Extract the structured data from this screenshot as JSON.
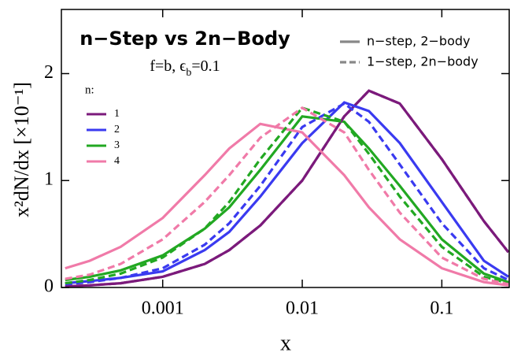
{
  "chart_data": {
    "type": "line",
    "title": "n−Step vs 2n−Body",
    "subtitle_parts": [
      "f=b, ϵ",
      "b",
      "=0.1"
    ],
    "x_label": "x",
    "y_label": "x²dN/dx [×10⁻¹]",
    "x_scale": "log",
    "xlim": [
      0.000188,
      0.304
    ],
    "xticks": [
      0.001,
      0.01,
      0.1
    ],
    "ylim": [
      0,
      2.6
    ],
    "yticks": [
      0,
      1,
      2
    ],
    "x": [
      0.0002,
      0.0003,
      0.0005,
      0.001,
      0.002,
      0.003,
      0.005,
      0.01,
      0.02,
      0.03,
      0.05,
      0.1,
      0.2,
      0.3
    ],
    "legend_title": "n:",
    "style_legend": [
      {
        "label": "n−step, 2−body",
        "dash": "solid"
      },
      {
        "label": "1−step, 2n−body",
        "dash": "dashed"
      }
    ],
    "series": [
      {
        "name": "1",
        "color": "#7b1a7b",
        "dash": "solid",
        "values": [
          0.01,
          0.02,
          0.04,
          0.1,
          0.22,
          0.35,
          0.58,
          1.0,
          1.6,
          1.84,
          1.72,
          1.2,
          0.62,
          0.33
        ]
      },
      {
        "name": "2",
        "color": "#3a3af0",
        "dash": "solid",
        "values": [
          0.04,
          0.06,
          0.09,
          0.15,
          0.35,
          0.52,
          0.85,
          1.35,
          1.73,
          1.65,
          1.35,
          0.8,
          0.25,
          0.1
        ]
      },
      {
        "name": "3",
        "color": "#22a822",
        "dash": "solid",
        "values": [
          0.07,
          0.1,
          0.16,
          0.3,
          0.55,
          0.75,
          1.1,
          1.6,
          1.55,
          1.3,
          0.95,
          0.45,
          0.13,
          0.05
        ]
      },
      {
        "name": "4",
        "color": "#f07aa8",
        "dash": "solid",
        "values": [
          0.18,
          0.25,
          0.38,
          0.65,
          1.05,
          1.3,
          1.53,
          1.45,
          1.05,
          0.75,
          0.45,
          0.18,
          0.05,
          0.02
        ]
      },
      {
        "color": "#7b1a7b",
        "dash": "dashed",
        "values": [
          0.01,
          0.02,
          0.04,
          0.1,
          0.22,
          0.35,
          0.58,
          1.0,
          1.6,
          1.84,
          1.72,
          1.2,
          0.62,
          0.33
        ]
      },
      {
        "color": "#3a3af0",
        "dash": "dashed",
        "values": [
          0.03,
          0.05,
          0.09,
          0.18,
          0.4,
          0.6,
          0.95,
          1.5,
          1.72,
          1.55,
          1.15,
          0.6,
          0.18,
          0.07
        ]
      },
      {
        "color": "#22a822",
        "dash": "dashed",
        "values": [
          0.04,
          0.07,
          0.13,
          0.28,
          0.55,
          0.8,
          1.2,
          1.68,
          1.55,
          1.25,
          0.85,
          0.38,
          0.1,
          0.04
        ]
      },
      {
        "color": "#f07aa8",
        "dash": "dashed",
        "values": [
          0.08,
          0.12,
          0.22,
          0.45,
          0.8,
          1.05,
          1.4,
          1.68,
          1.45,
          1.1,
          0.7,
          0.28,
          0.08,
          0.03
        ]
      }
    ]
  }
}
